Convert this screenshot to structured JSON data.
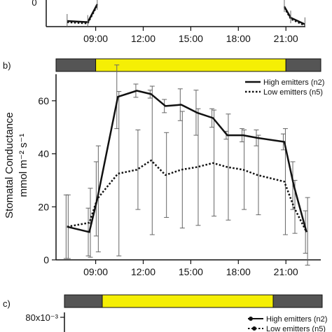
{
  "panel_labels": {
    "b": "b)",
    "c": "c)"
  },
  "colors": {
    "day_bar": "#f5ef05",
    "night_bar": "#555555",
    "line": "#111111",
    "error_bar": "#666666"
  },
  "chart_data": [
    {
      "type": "line",
      "panel": "a",
      "note": "top panel cropped",
      "x_tick_labels": [
        "09:00",
        "12:00",
        "15:00",
        "18:00",
        "21:00"
      ],
      "x_ticks": [
        9,
        12,
        15,
        18,
        21
      ],
      "xlim": [
        6.5,
        23.2
      ],
      "y_tick_labels": [
        "0"
      ],
      "series": [
        {
          "x": [
            7.2,
            8.5,
            9.1
          ],
          "values": [
            5,
            4,
            20
          ]
        },
        {
          "x": [
            20.9,
            21.3,
            22.2
          ],
          "values": [
            18,
            8,
            2
          ]
        }
      ]
    },
    {
      "type": "line",
      "panel": "b",
      "ylabel": "Stomatal Conductance",
      "ylabel_units": "mmol m⁻² s⁻¹",
      "ylim": [
        0,
        70
      ],
      "xlim": [
        6.5,
        23.2
      ],
      "x_ticks": [
        9,
        12,
        15,
        18,
        21
      ],
      "x_tick_labels": [
        "09:00",
        "12:00",
        "15:00",
        "18:00",
        "21:00"
      ],
      "y_ticks": [
        0,
        20,
        40,
        60
      ],
      "y_tick_labels": [
        "0",
        "20",
        "40",
        "60"
      ],
      "day_period": [
        9,
        21
      ],
      "grid": false,
      "legend_position": "top-right",
      "series": [
        {
          "name": "High emitters (n2)",
          "style": "solid",
          "x": [
            7.2,
            8.6,
            9.1,
            10.4,
            11.6,
            12.5,
            13.4,
            14.4,
            15.4,
            16.4,
            17.3,
            18.3,
            19.2,
            20.9,
            21.5,
            22.3
          ],
          "values": [
            12.5,
            10.5,
            23,
            61.5,
            63.8,
            62.5,
            58,
            58.5,
            55.5,
            53.5,
            47,
            47,
            46,
            44.5,
            28,
            10.5
          ],
          "errors": [
            12,
            9,
            14,
            12,
            2.5,
            1.5,
            2.5,
            6,
            8.5,
            3.5,
            1.5,
            2.5,
            3,
            3,
            9,
            8
          ]
        },
        {
          "name": "Low emitters (n5)",
          "style": "dotted",
          "x": [
            7.2,
            8.6,
            9.1,
            10.4,
            11.6,
            12.5,
            13.4,
            14.4,
            15.4,
            16.4,
            17.3,
            18.3,
            19.2,
            20.9,
            21.5,
            22.3
          ],
          "values": [
            12.5,
            14,
            23,
            32.5,
            34,
            37.5,
            32,
            34,
            35,
            36.5,
            35,
            34,
            32,
            29.5,
            20,
            10.5
          ],
          "errors": [
            12,
            13,
            20,
            31,
            15,
            28,
            16,
            22,
            22,
            20,
            20,
            15,
            15,
            20,
            10,
            13
          ]
        }
      ]
    },
    {
      "type": "line",
      "panel": "c",
      "note": "bottom panel cropped",
      "y_tick_labels": [
        "80x10⁻³"
      ],
      "legend_position": "top-right",
      "series": [
        {
          "name": "High emitters (n2)",
          "style": "solid"
        },
        {
          "name": "Low emitters (n5)",
          "style": "dotted"
        }
      ]
    }
  ]
}
